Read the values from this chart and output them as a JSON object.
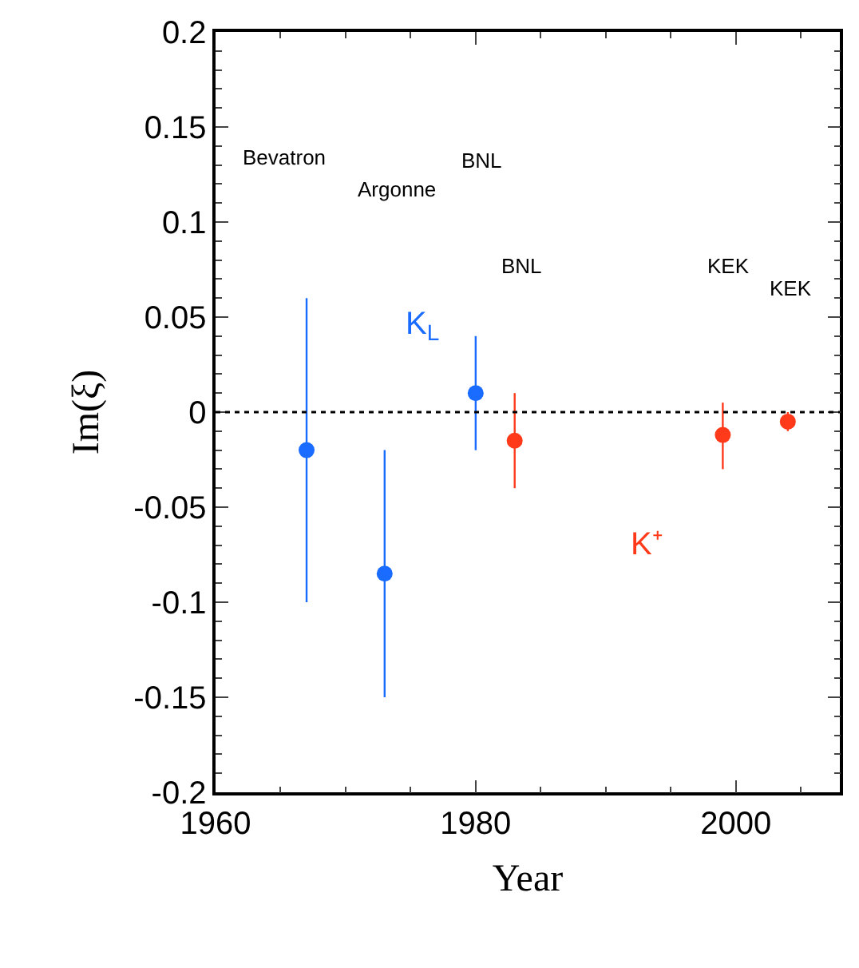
{
  "chart_data": {
    "type": "scatter",
    "xlabel": "Year",
    "ylabel": "Im(ξ)",
    "xlim": [
      1960,
      2008
    ],
    "xticks": [
      1960,
      1980,
      2000
    ],
    "ylim": [
      -0.2,
      0.2
    ],
    "yticks": [
      -0.2,
      -0.15,
      -0.1,
      -0.05,
      0,
      0.05,
      0.1,
      0.15,
      0.2
    ],
    "legend": "top left",
    "marker": "circle",
    "series": [
      {
        "name": "K$_{L}$",
        "color": "#1a6bff",
        "x": [
          1967,
          1973,
          1980
        ],
        "values": [
          -0.02,
          -0.085,
          0.01
        ],
        "errors": [
          [
            -0.1,
            0.06
          ],
          [
            -0.15,
            -0.02
          ],
          [
            -0.02,
            0.04
          ]
        ]
      },
      {
        "name": "K⁺",
        "color": "#ff3a1a",
        "x": [
          1983,
          1999,
          2004
        ],
        "values": [
          -0.015,
          -0.012,
          -0.005
        ],
        "errors": [
          [
            -0.04,
            0.01
          ],
          [
            -0.03,
            0.005
          ],
          [
            -0.01,
            0.0
          ]
        ]
      }
    ],
    "ref_lines": [
      {
        "axis": "y",
        "value": 0,
        "color": "#000000",
        "line_style": "dotted"
      }
    ],
    "annotations": [
      "Bevatron",
      "Argonne",
      "BNL",
      "BNL",
      "KEK",
      "KEK"
    ]
  }
}
